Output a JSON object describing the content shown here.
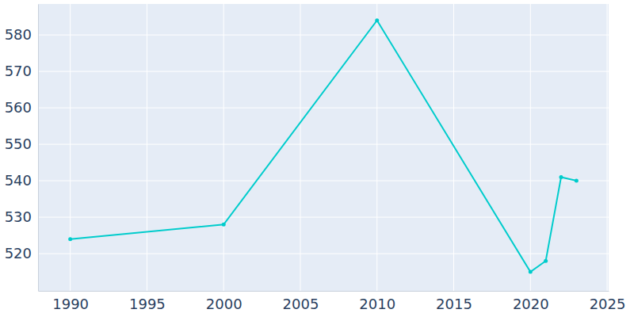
{
  "chart_data": {
    "type": "line",
    "x": [
      1990,
      2000,
      2010,
      2020,
      2021,
      2022,
      2023
    ],
    "values": [
      524,
      528,
      584,
      515,
      518,
      541,
      540
    ],
    "color": "#00cccc",
    "marker": "circle",
    "xlim": [
      1987.9,
      2025.1
    ],
    "xticks": [
      1990,
      1995,
      2000,
      2005,
      2010,
      2015,
      2020,
      2025
    ],
    "ylim": [
      509.8,
      588.5
    ],
    "yticks": [
      520,
      530,
      540,
      550,
      560,
      570,
      580
    ],
    "grid": true
  }
}
